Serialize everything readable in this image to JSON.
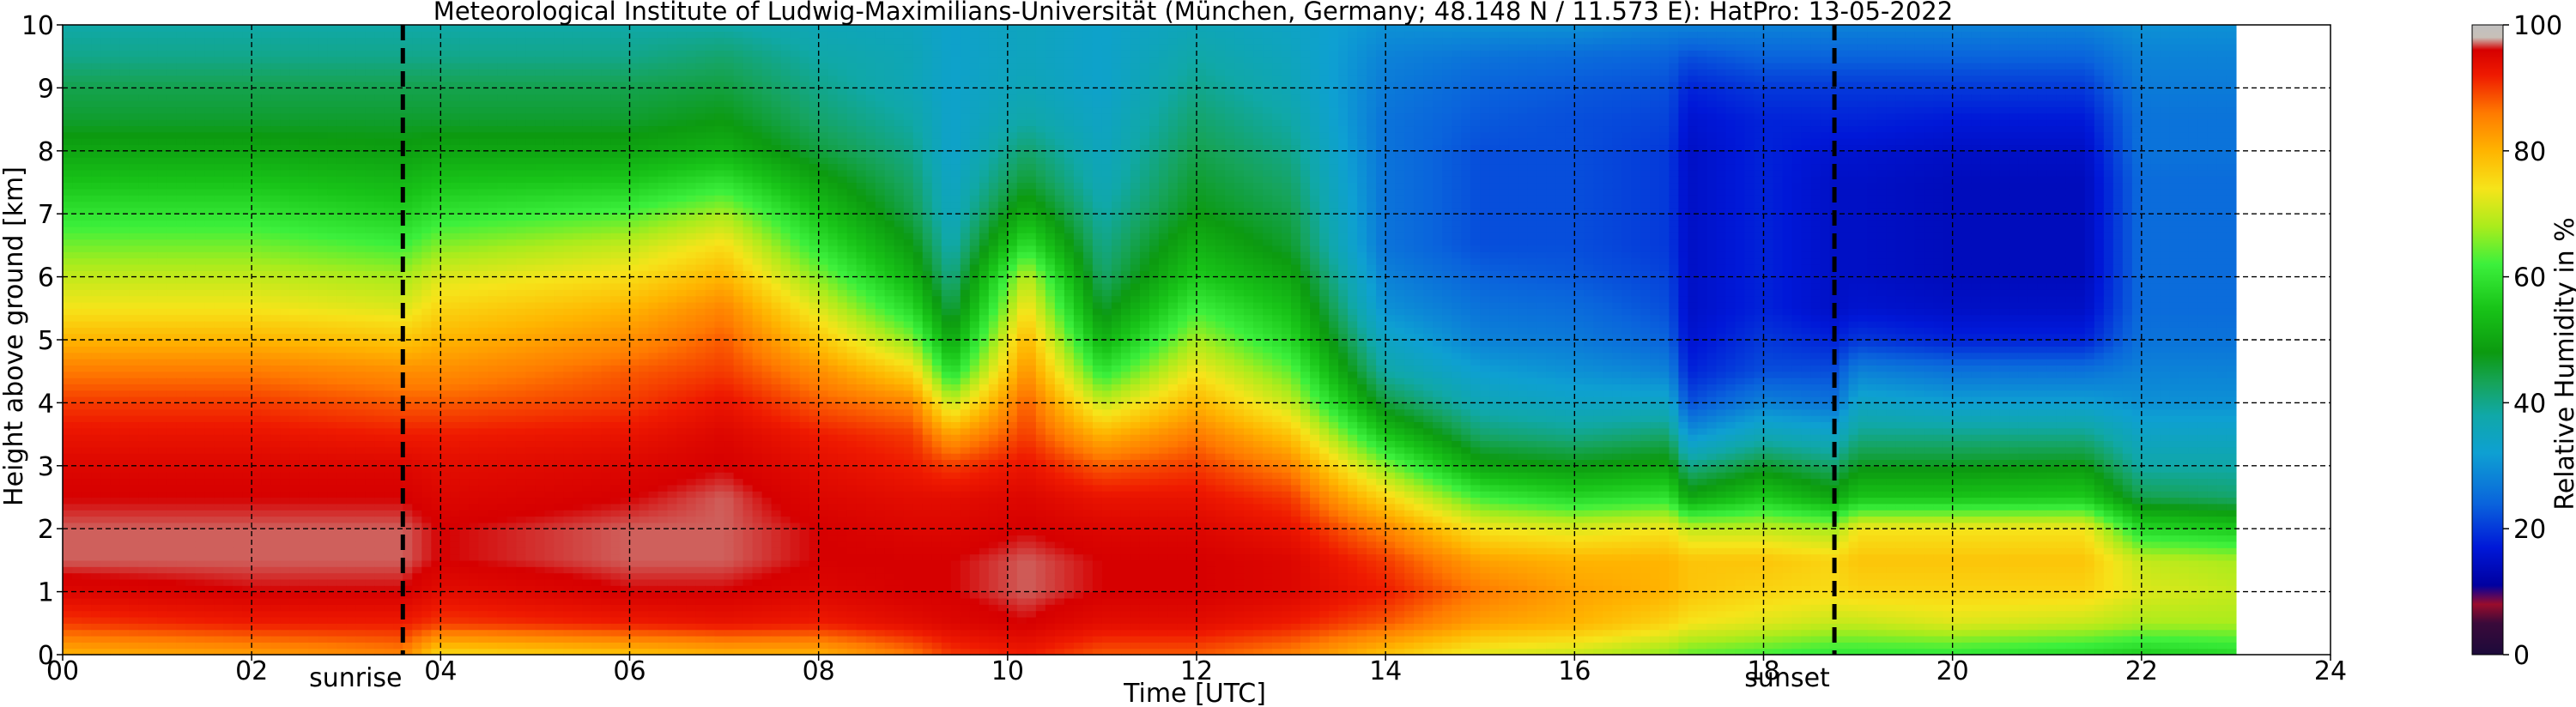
{
  "chart_data": {
    "type": "heatmap",
    "title": "Meteorological Institute of Ludwig-Maximilians-Universität (München, Germany; 48.148 N / 11.573 E):    HatPro: 13-05-2022",
    "xlabel": "Time [UTC]",
    "ylabel": "Height above ground [km]",
    "xlim": [
      0,
      24
    ],
    "ylim": [
      0,
      10
    ],
    "grid": true,
    "x_ticks": [
      "00",
      "02",
      "04",
      "06",
      "08",
      "10",
      "12",
      "14",
      "16",
      "18",
      "20",
      "22",
      "24"
    ],
    "y_ticks": [
      "0",
      "1",
      "2",
      "3",
      "4",
      "5",
      "6",
      "7",
      "8",
      "9",
      "10"
    ],
    "data_end_hour": 23,
    "annotations": [
      {
        "label": "sunrise",
        "x": 3.6
      },
      {
        "label": "sunset",
        "x": 18.75
      }
    ],
    "colorbar": {
      "label": "Relative Humidity in %",
      "range": [
        0,
        100
      ],
      "ticks": [
        "0",
        "20",
        "40",
        "60",
        "80",
        "100"
      ]
    },
    "profile_heights_km": [
      0,
      0.5,
      1,
      1.5,
      2,
      2.5,
      3,
      3.5,
      4,
      4.5,
      5,
      5.5,
      6,
      6.5,
      7,
      7.5,
      8,
      8.5,
      9,
      9.5,
      10
    ],
    "times_h": [
      0,
      2,
      3.6,
      4,
      6,
      7,
      8,
      9,
      9.4,
      10.2,
      11,
      12,
      13,
      14,
      15,
      16,
      17,
      17.2,
      18,
      18.75,
      19,
      20,
      21.4,
      22,
      23
    ],
    "rh_percent": [
      [
        80,
        90,
        95,
        97,
        97,
        96,
        95,
        93,
        90,
        86,
        80,
        74,
        70,
        65,
        60,
        55,
        50,
        46,
        44,
        40,
        38
      ],
      [
        82,
        92,
        96,
        97,
        97,
        96,
        95,
        93,
        90,
        86,
        80,
        74,
        70,
        65,
        60,
        55,
        50,
        46,
        44,
        40,
        38
      ],
      [
        85,
        92,
        96,
        97,
        97,
        96,
        95,
        92,
        88,
        84,
        78,
        72,
        68,
        62,
        57,
        53,
        49,
        46,
        44,
        40,
        38
      ],
      [
        75,
        90,
        94,
        96,
        96,
        95,
        94,
        92,
        88,
        84,
        80,
        76,
        72,
        66,
        60,
        55,
        50,
        46,
        44,
        40,
        38
      ],
      [
        78,
        92,
        96,
        97,
        97,
        96,
        95,
        93,
        90,
        88,
        84,
        80,
        75,
        70,
        63,
        56,
        50,
        46,
        44,
        40,
        38
      ],
      [
        80,
        93,
        96,
        97,
        97,
        97,
        96,
        95,
        93,
        90,
        88,
        85,
        80,
        75,
        68,
        60,
        52,
        48,
        45,
        42,
        38
      ],
      [
        80,
        92,
        95,
        96,
        96,
        95,
        94,
        92,
        88,
        84,
        78,
        72,
        66,
        60,
        55,
        50,
        45,
        42,
        40,
        38,
        36
      ],
      [
        86,
        94,
        96,
        96,
        95,
        94,
        92,
        90,
        85,
        76,
        66,
        58,
        52,
        48,
        44,
        42,
        40,
        38,
        36,
        36,
        35
      ],
      [
        90,
        95,
        96,
        96,
        95,
        94,
        90,
        82,
        70,
        58,
        50,
        44,
        40,
        37,
        35,
        34,
        33,
        33,
        33,
        33,
        33
      ],
      [
        92,
        96,
        97,
        97,
        96,
        95,
        93,
        90,
        88,
        84,
        80,
        75,
        70,
        60,
        52,
        46,
        42,
        38,
        36,
        35,
        35
      ],
      [
        88,
        94,
        96,
        96,
        95,
        93,
        88,
        80,
        70,
        60,
        52,
        46,
        42,
        40,
        38,
        36,
        35,
        34,
        33,
        33,
        33
      ],
      [
        88,
        94,
        96,
        96,
        95,
        93,
        90,
        86,
        80,
        74,
        68,
        62,
        56,
        52,
        48,
        46,
        44,
        42,
        40,
        38,
        36
      ],
      [
        85,
        92,
        95,
        95,
        93,
        90,
        85,
        78,
        70,
        64,
        58,
        54,
        50,
        46,
        44,
        42,
        40,
        38,
        36,
        35,
        34
      ],
      [
        78,
        88,
        92,
        90,
        85,
        76,
        66,
        55,
        45,
        38,
        34,
        30,
        28,
        26,
        26,
        26,
        26,
        26,
        27,
        28,
        30
      ],
      [
        72,
        82,
        86,
        82,
        74,
        62,
        50,
        42,
        36,
        32,
        28,
        26,
        24,
        22,
        22,
        22,
        22,
        23,
        24,
        26,
        30
      ],
      [
        70,
        80,
        82,
        80,
        72,
        58,
        48,
        40,
        34,
        30,
        27,
        25,
        23,
        22,
        22,
        22,
        22,
        22,
        23,
        25,
        30
      ],
      [
        66,
        76,
        80,
        80,
        74,
        60,
        50,
        42,
        34,
        28,
        24,
        22,
        21,
        20,
        20,
        20,
        20,
        21,
        22,
        24,
        28
      ],
      [
        64,
        74,
        78,
        78,
        70,
        50,
        40,
        30,
        22,
        18,
        16,
        15,
        15,
        15,
        15,
        15,
        15,
        16,
        18,
        22,
        28
      ],
      [
        62,
        72,
        76,
        78,
        70,
        56,
        46,
        36,
        28,
        22,
        20,
        18,
        18,
        18,
        18,
        18,
        18,
        18,
        20,
        24,
        28
      ],
      [
        60,
        70,
        75,
        76,
        68,
        50,
        42,
        34,
        26,
        22,
        18,
        15,
        15,
        15,
        15,
        15,
        16,
        18,
        20,
        24,
        28
      ],
      [
        60,
        70,
        76,
        78,
        74,
        55,
        47,
        40,
        34,
        28,
        20,
        16,
        15,
        15,
        15,
        15,
        16,
        18,
        20,
        24,
        28
      ],
      [
        60,
        72,
        76,
        78,
        74,
        55,
        47,
        40,
        32,
        26,
        18,
        15,
        14,
        14,
        14,
        14,
        15,
        17,
        20,
        24,
        28
      ],
      [
        58,
        70,
        76,
        78,
        74,
        56,
        48,
        40,
        32,
        26,
        18,
        15,
        14,
        14,
        14,
        14,
        15,
        17,
        20,
        24,
        28
      ],
      [
        56,
        68,
        72,
        70,
        58,
        44,
        38,
        34,
        30,
        28,
        26,
        25,
        25,
        25,
        25,
        25,
        26,
        26,
        27,
        28,
        30
      ],
      [
        58,
        68,
        70,
        68,
        56,
        42,
        38,
        34,
        30,
        28,
        26,
        25,
        25,
        25,
        25,
        25,
        26,
        26,
        27,
        28,
        30
      ]
    ],
    "colorscale": [
      {
        "v": 0,
        "color": "#1c0a3a"
      },
      {
        "v": 5,
        "color": "#3a0a3a"
      },
      {
        "v": 8,
        "color": "#9a0c2c"
      },
      {
        "v": 11,
        "color": "#0000a0"
      },
      {
        "v": 17,
        "color": "#0018d8"
      },
      {
        "v": 24,
        "color": "#0a64dc"
      },
      {
        "v": 32,
        "color": "#0ea0d2"
      },
      {
        "v": 38,
        "color": "#10a8a8"
      },
      {
        "v": 43,
        "color": "#16a45c"
      },
      {
        "v": 48,
        "color": "#0c9a10"
      },
      {
        "v": 55,
        "color": "#18c418"
      },
      {
        "v": 62,
        "color": "#3cf03c"
      },
      {
        "v": 68,
        "color": "#aaec1c"
      },
      {
        "v": 74,
        "color": "#f6e41a"
      },
      {
        "v": 80,
        "color": "#ffb400"
      },
      {
        "v": 86,
        "color": "#ff7a00"
      },
      {
        "v": 92,
        "color": "#ef1a00"
      },
      {
        "v": 96,
        "color": "#d60000"
      },
      {
        "v": 98,
        "color": "#c8c0b8"
      },
      {
        "v": 100,
        "color": "#c0c0c0"
      }
    ]
  }
}
